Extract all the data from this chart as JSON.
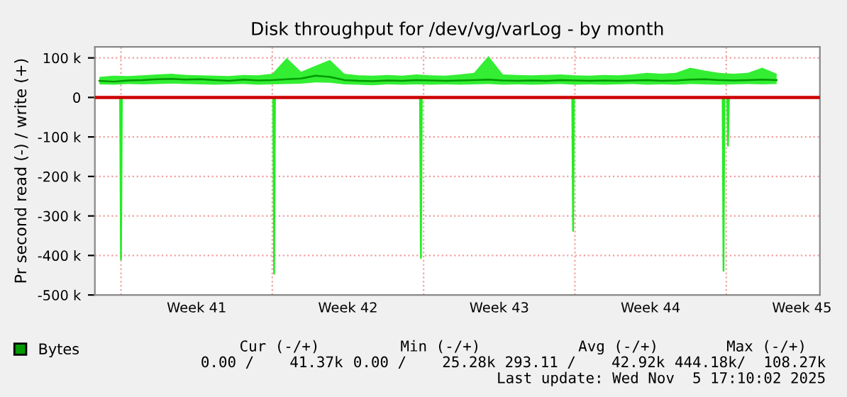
{
  "chart_data": {
    "type": "line",
    "title": "Disk throughput for /dev/vg/varLog - by month",
    "ylabel": "Pr second read (-) / write (+)",
    "xlim": [
      "2025-10-04T19:00",
      "2025-11-07T08:00"
    ],
    "xticks": [
      {
        "value": "2025-10-09T12:00",
        "label": "Week 41"
      },
      {
        "value": "2025-10-16T12:00",
        "label": "Week 42"
      },
      {
        "value": "2025-10-23T12:00",
        "label": "Week 43"
      },
      {
        "value": "2025-10-30T12:00",
        "label": "Week 44"
      },
      {
        "value": "2025-11-06T12:00",
        "label": "Week 45"
      }
    ],
    "ylim": [
      -500000,
      128000
    ],
    "yticks": [
      {
        "value": -500000,
        "label": "-500 k"
      },
      {
        "value": -400000,
        "label": "-400 k"
      },
      {
        "value": -300000,
        "label": "-300 k"
      },
      {
        "value": -200000,
        "label": "-200 k"
      },
      {
        "value": -100000,
        "label": "-100 k"
      },
      {
        "value": 0,
        "label": "0"
      },
      {
        "value": 100000,
        "label": "100 k"
      }
    ],
    "grid": "y",
    "legend": "bottom",
    "ref_lines": [
      {
        "axis": "y",
        "value": 0,
        "color": "#cc0000",
        "line_style": "solid"
      },
      {
        "axis": "x",
        "value": "2025-10-06",
        "color": "#f0a0a0",
        "line_style": "dotted"
      },
      {
        "axis": "x",
        "value": "2025-10-13",
        "color": "#f0a0a0",
        "line_style": "dotted"
      },
      {
        "axis": "x",
        "value": "2025-10-20",
        "color": "#f0a0a0",
        "line_style": "dotted"
      },
      {
        "axis": "x",
        "value": "2025-10-27",
        "color": "#f0a0a0",
        "line_style": "dotted"
      },
      {
        "axis": "x",
        "value": "2025-11-03",
        "color": "#f0a0a0",
        "line_style": "dotted"
      }
    ],
    "series": [
      {
        "name": "Bytes",
        "color": "#009900",
        "x": [
          "2025-10-05T00:00",
          "2025-10-05T16:00",
          "2025-10-06T08:00",
          "2025-10-07T00:00",
          "2025-10-07T16:00",
          "2025-10-08T08:00",
          "2025-10-09T00:00",
          "2025-10-09T16:00",
          "2025-10-10T08:00",
          "2025-10-11T00:00",
          "2025-10-11T16:00",
          "2025-10-12T08:00",
          "2025-10-13T00:00",
          "2025-10-13T16:00",
          "2025-10-14T08:00",
          "2025-10-15T00:00",
          "2025-10-15T16:00",
          "2025-10-16T08:00",
          "2025-10-17T00:00",
          "2025-10-17T16:00",
          "2025-10-18T08:00",
          "2025-10-19T00:00",
          "2025-10-19T16:00",
          "2025-10-20T08:00",
          "2025-10-21T00:00",
          "2025-10-21T16:00",
          "2025-10-22T08:00",
          "2025-10-23T00:00",
          "2025-10-23T16:00",
          "2025-10-24T08:00",
          "2025-10-25T00:00",
          "2025-10-25T16:00",
          "2025-10-26T08:00",
          "2025-10-27T00:00",
          "2025-10-27T16:00",
          "2025-10-28T08:00",
          "2025-10-29T00:00",
          "2025-10-29T16:00",
          "2025-10-30T08:00",
          "2025-10-31T00:00",
          "2025-10-31T16:00",
          "2025-11-01T08:00",
          "2025-11-02T00:00",
          "2025-11-02T16:00",
          "2025-11-03T08:00",
          "2025-11-04T00:00",
          "2025-11-04T16:00",
          "2025-11-05T08:00"
        ],
        "values": [
          42000,
          40000,
          43000,
          44000,
          46000,
          47000,
          45000,
          46000,
          44000,
          42000,
          45000,
          43000,
          44000,
          46000,
          48000,
          55000,
          52000,
          44000,
          42000,
          41000,
          43000,
          42000,
          44000,
          43000,
          42000,
          43000,
          44000,
          45000,
          43000,
          42000,
          43000,
          42000,
          44000,
          43000,
          42000,
          43000,
          42000,
          43000,
          44000,
          42000,
          43000,
          45000,
          46000,
          44000,
          43000,
          44000,
          45000,
          44000
        ],
        "lower": [
          33000,
          32000,
          34000,
          33000,
          34000,
          35000,
          34000,
          33000,
          32000,
          33000,
          34000,
          32000,
          33000,
          34000,
          35000,
          38000,
          37000,
          33000,
          32000,
          31000,
          33000,
          32000,
          33000,
          32000,
          33000,
          32000,
          33000,
          34000,
          32000,
          33000,
          32000,
          33000,
          34000,
          32000,
          33000,
          32000,
          33000,
          34000,
          32000,
          33000,
          32000,
          34000,
          33000,
          32000,
          33000,
          34000,
          33000,
          34000
        ],
        "upper": [
          52000,
          55000,
          54000,
          56000,
          58000,
          60000,
          57000,
          56000,
          55000,
          54000,
          57000,
          56000,
          60000,
          100000,
          65000,
          80000,
          95000,
          60000,
          56000,
          55000,
          57000,
          55000,
          58000,
          56000,
          55000,
          58000,
          62000,
          105000,
          58000,
          57000,
          56000,
          57000,
          58000,
          56000,
          55000,
          57000,
          56000,
          58000,
          62000,
          60000,
          62000,
          75000,
          68000,
          62000,
          60000,
          62000,
          75000,
          60000
        ]
      },
      {
        "color": "#22ee22",
        "x": [
          "2025-10-04T19:00",
          "2025-10-05T23:00",
          "2025-10-06T00:00",
          "2025-10-06T01:00",
          "2025-10-13T01:00",
          "2025-10-13T02:00",
          "2025-10-13T03:00",
          "2025-10-19T20:00",
          "2025-10-19T21:00",
          "2025-10-19T22:00",
          "2025-10-26T21:00",
          "2025-10-26T22:00",
          "2025-10-26T23:00",
          "2025-11-02T20:00",
          "2025-11-02T21:00",
          "2025-11-02T22:00",
          "2025-11-03T01:00",
          "2025-11-03T02:00",
          "2025-11-03T03:00",
          "2025-11-07T08:00"
        ],
        "values": [
          0,
          0,
          -410000,
          0,
          0,
          -446000,
          0,
          0,
          -406000,
          0,
          0,
          -338000,
          0,
          0,
          -439000,
          0,
          0,
          -122000,
          0,
          0
        ]
      }
    ],
    "annotations": [
      "Cur (-/+)",
      "Min (-/+)",
      "Avg (-/+)",
      "Max (-/+)",
      "0.00 /    41.37k",
      "0.00 /    25.28k",
      "293.11 /    42.92k",
      "444.18k/  108.27k",
      "Last update: Wed Nov  5 17:10:02 2025"
    ]
  }
}
